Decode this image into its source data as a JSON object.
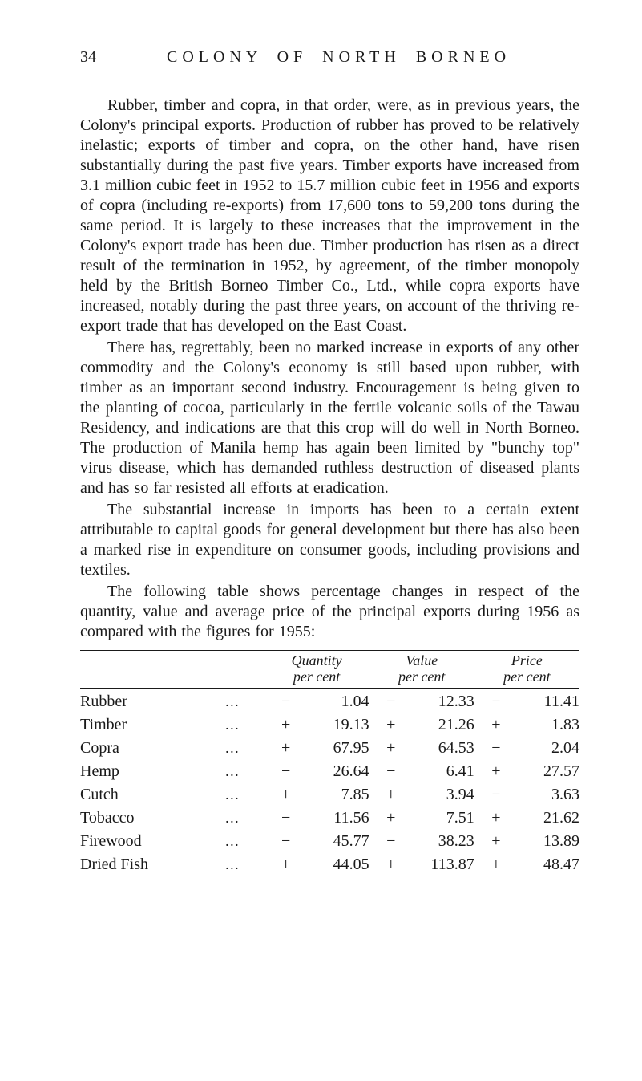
{
  "page": {
    "number": "34",
    "title": "COLONY OF NORTH BORNEO"
  },
  "paragraphs": {
    "p1": "Rubber, timber and copra, in that order, were, as in previous years, the Colony's principal exports. Production of rubber has proved to be relatively inelastic; exports of timber and copra, on the other hand, have risen substantially during the past five years. Timber exports have increased from 3.1 million cubic feet in 1952 to 15.7 million cubic feet in 1956 and exports of copra (including re-exports) from 17,600 tons to 59,200 tons during the same period. It is largely to these increases that the improve­ment in the Colony's export trade has been due. Timber production has risen as a direct result of the termination in 1952, by agreement, of the timber monopoly held by the British Borneo Timber Co., Ltd., while copra exports have increased, notably during the past three years, on account of the thriving re-export trade that has developed on the East Coast.",
    "p2": "There has, regrettably, been no marked increase in exports of any other commodity and the Colony's economy is still based upon rubber, with timber as an important second industry. Encouragement is being given to the planting of cocoa, particular­ly in the fertile volcanic soils of the Tawau Residency, and indications are that this crop will do well in North Borneo. The production of Manila hemp has again been limited by \"bunchy top\" virus disease, which has demanded ruthless destruction of diseased plants and has so far resisted all efforts at eradication.",
    "p3": "The substantial increase in imports has been to a certain extent attributable to capital goods for general development but there has also been a marked rise in expenditure on consumer goods, including provisions and textiles.",
    "p4": "The following table shows percentage changes in respect of the quantity, value and average price of the principal exports during 1956 as compared with the figures for 1955:"
  },
  "table": {
    "type": "table",
    "text_color": "#1a1a1a",
    "rule_color": "#1a1a1a",
    "background_color": "#ffffff",
    "base_fontsize": 20,
    "header_fontsize": 18,
    "header_style": "italic",
    "columns": [
      {
        "title_lines": [
          "",
          ""
        ],
        "align": "left"
      },
      {
        "title_lines": [
          "Quantity",
          "per cent"
        ],
        "align": "right"
      },
      {
        "title_lines": [
          "Value",
          "per cent"
        ],
        "align": "right"
      },
      {
        "title_lines": [
          "Price",
          "per cent"
        ],
        "align": "right"
      }
    ],
    "dots": "…",
    "rows": [
      {
        "item": "Rubber",
        "q_sign": "−",
        "q": "1.04",
        "v_sign": "−",
        "v": "12.33",
        "p_sign": "−",
        "p": "11.41"
      },
      {
        "item": "Timber",
        "q_sign": "+",
        "q": "19.13",
        "v_sign": "+",
        "v": "21.26",
        "p_sign": "+",
        "p": "1.83"
      },
      {
        "item": "Copra",
        "q_sign": "+",
        "q": "67.95",
        "v_sign": "+",
        "v": "64.53",
        "p_sign": "−",
        "p": "2.04"
      },
      {
        "item": "Hemp",
        "q_sign": "−",
        "q": "26.64",
        "v_sign": "−",
        "v": "6.41",
        "p_sign": "+",
        "p": "27.57"
      },
      {
        "item": "Cutch",
        "q_sign": "+",
        "q": "7.85",
        "v_sign": "+",
        "v": "3.94",
        "p_sign": "−",
        "p": "3.63"
      },
      {
        "item": "Tobacco",
        "q_sign": "−",
        "q": "11.56",
        "v_sign": "+",
        "v": "7.51",
        "p_sign": "+",
        "p": "21.62"
      },
      {
        "item": "Firewood",
        "q_sign": "−",
        "q": "45.77",
        "v_sign": "−",
        "v": "38.23",
        "p_sign": "+",
        "p": "13.89"
      },
      {
        "item": "Dried Fish",
        "q_sign": "+",
        "q": "44.05",
        "v_sign": "+",
        "v": "113.87",
        "p_sign": "+",
        "p": "48.47"
      }
    ]
  }
}
